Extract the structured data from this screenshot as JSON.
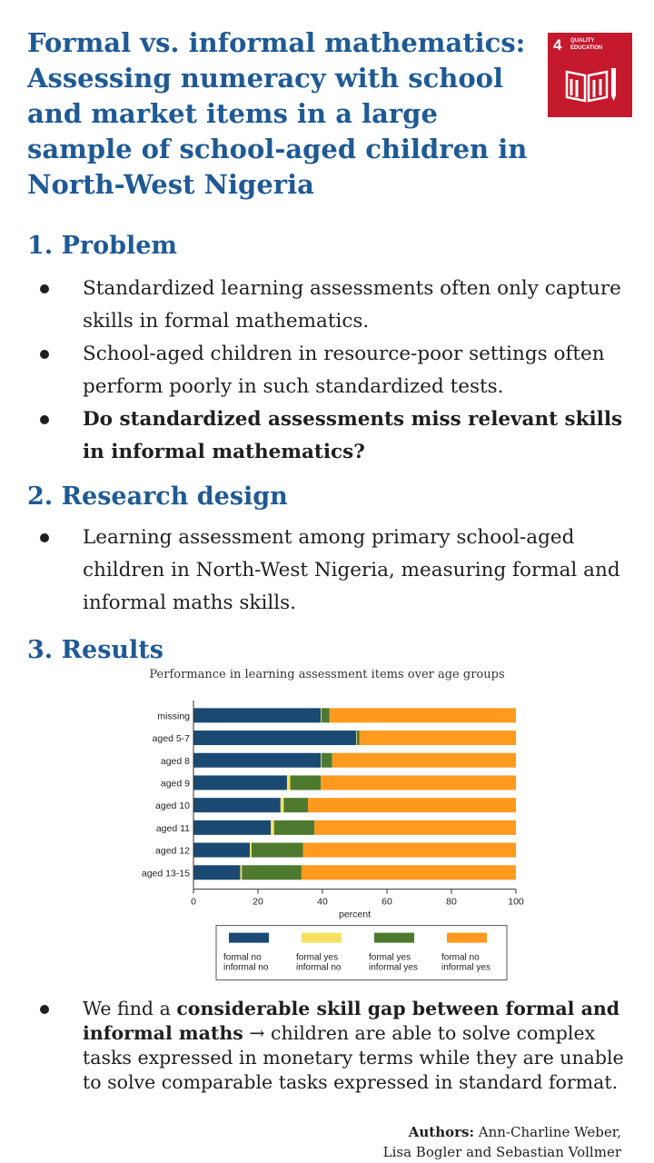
{
  "title": "Formal vs. informal mathematics: Assessing numeracy with school and market items in a large sample of school-aged children in North-West Nigeria",
  "sdg_badge": {
    "number": "4",
    "line1": "QUALITY",
    "line2": "EDUCATION",
    "color": "#c5192d",
    "icon": "book-pencil-icon"
  },
  "sections": {
    "problem": {
      "heading": "1. Problem",
      "bullets": [
        "Standardized learning assessments often only capture skills in formal mathematics.",
        "School-aged children in resource-poor settings often perform poorly in such standardized tests.",
        "Do standardized assessments miss relevant skills in informal mathematics?"
      ]
    },
    "design": {
      "heading": "2. Research design",
      "bullets": [
        "Learning assessment among primary school-aged children in North-West Nigeria, measuring formal and informal maths skills."
      ]
    },
    "results": {
      "heading": "3. Results",
      "chart_caption": "Performance in learning assessment items over age groups",
      "finding_pre": "We find a ",
      "finding_bold": "considerable skill gap between formal and informal maths",
      "finding_post": " → children are able to solve complex tasks expressed in monetary terms while they are unable to solve comparable tasks expressed in standard format."
    }
  },
  "authors": {
    "label": "Authors:",
    "line1": " Ann-Charline Weber,",
    "line2": "Lisa Bogler and Sebastian Vollmer"
  },
  "chart_data": {
    "type": "bar",
    "orientation": "horizontal",
    "stacked": true,
    "title": "Performance in learning assessment items over age groups",
    "xlabel": "percent",
    "xlim": [
      0,
      100
    ],
    "xticks": [
      0,
      20,
      40,
      60,
      80,
      100
    ],
    "categories": [
      "missing",
      "aged 5-7",
      "aged 8",
      "aged 9",
      "aged 10",
      "aged 11",
      "aged 12",
      "aged 13-15"
    ],
    "series": [
      {
        "name": "formal no informal no",
        "legend": [
          "formal no",
          "informal no"
        ],
        "color": "#1a4a72",
        "values": [
          39.5,
          50.5,
          39.5,
          29,
          27,
          24,
          17.5,
          14.5
        ]
      },
      {
        "name": "formal yes informal no",
        "legend": [
          "formal yes",
          "informal no"
        ],
        "color": "#f5e262",
        "values": [
          0.2,
          0.2,
          0.2,
          1,
          1,
          1,
          0.5,
          0.5
        ]
      },
      {
        "name": "formal yes informal yes",
        "legend": [
          "formal yes",
          "informal yes"
        ],
        "color": "#4d7a2e",
        "values": [
          2.5,
          0.8,
          3.3,
          9.5,
          7.5,
          12.5,
          16,
          18.5
        ]
      },
      {
        "name": "formal no informal yes",
        "legend": [
          "formal no",
          "informal yes"
        ],
        "color": "#ff9a1f",
        "values": [
          57.8,
          48.5,
          57,
          60.5,
          64.5,
          62.5,
          66,
          66.5
        ]
      }
    ],
    "legend_position": "bottom"
  }
}
